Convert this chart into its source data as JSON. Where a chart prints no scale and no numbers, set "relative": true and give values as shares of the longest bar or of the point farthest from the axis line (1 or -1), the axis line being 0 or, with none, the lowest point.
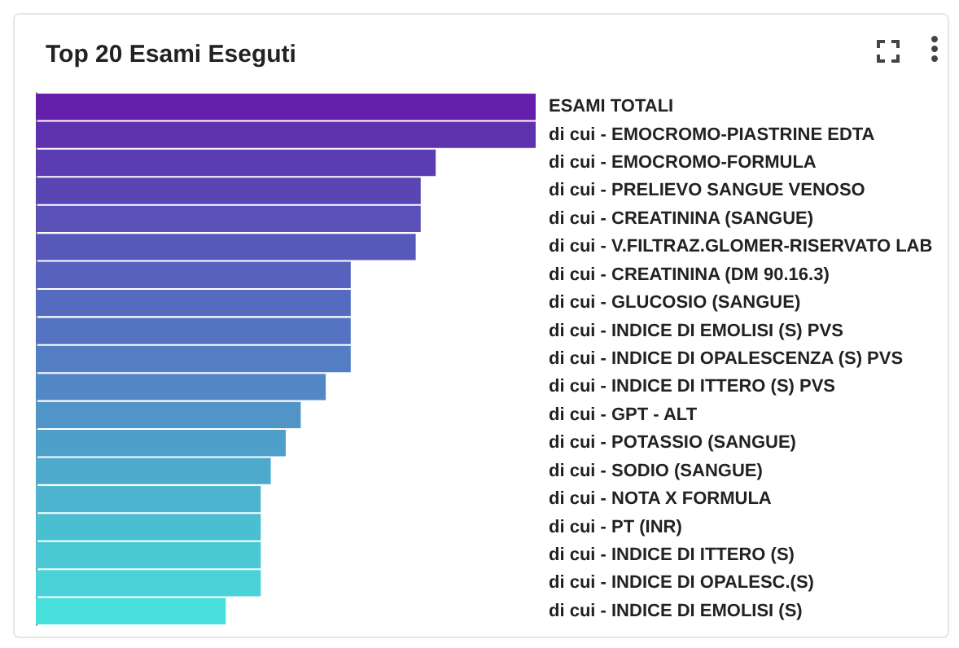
{
  "chart_data": {
    "type": "bar",
    "orientation": "horizontal",
    "relative": true,
    "title": "Top 20 Esami Eseguti",
    "categories": [
      "ESAMI TOTALI",
      "di cui - EMOCROMO-PIASTRINE EDTA",
      "di cui - EMOCROMO-FORMULA",
      "di cui - PRELIEVO SANGUE VENOSO",
      "di cui - CREATININA (SANGUE)",
      "di cui - V.FILTRAZ.GLOMER-RISERVATO LAB",
      "di cui - CREATININA (DM 90.16.3)",
      "di cui - GLUCOSIO (SANGUE)",
      "di cui - INDICE DI EMOLISI (S) PVS",
      "di cui - INDICE DI OPALESCENZA (S) PVS",
      "di cui - INDICE DI ITTERO (S) PVS",
      "di cui - GPT - ALT",
      "di cui - POTASSIO (SANGUE)",
      "di cui - SODIO (SANGUE)",
      "di cui - NOTA X FORMULA",
      "di cui - PT (INR)",
      "di cui - INDICE DI ITTERO (S)",
      "di cui - INDICE DI OPALESC.(S)",
      "di cui - INDICE DI EMOLISI (S)"
    ],
    "values": [
      1,
      1,
      0.8,
      0.77,
      0.77,
      0.76,
      0.63,
      0.63,
      0.63,
      0.63,
      0.58,
      0.53,
      0.5,
      0.47,
      0.45,
      0.45,
      0.45,
      0.45,
      0.38
    ],
    "colors": [
      "#6420aa",
      "#5e32ae",
      "#5b3cb2",
      "#5a45b4",
      "#5950b8",
      "#5858ba",
      "#5662bd",
      "#556bc0",
      "#5474c2",
      "#537ec4",
      "#5288c6",
      "#5094c8",
      "#4f9fcb",
      "#4eaacd",
      "#4db4d0",
      "#4bbfd2",
      "#4ac9d5",
      "#49d3d8",
      "#48e0dc"
    ]
  }
}
